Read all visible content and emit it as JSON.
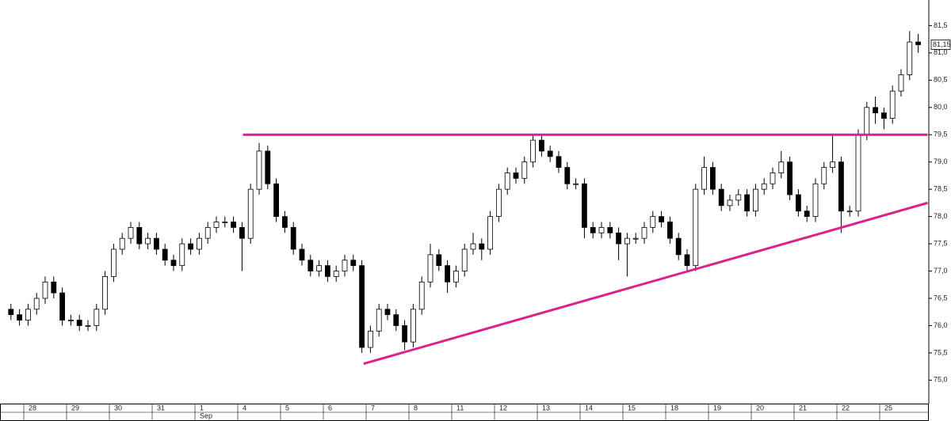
{
  "chart_data": {
    "type": "candlestick",
    "categories": [
      null,
      null,
      "28",
      null,
      null,
      null,
      null,
      "29",
      null,
      null,
      null,
      null,
      "30",
      null,
      null,
      null,
      null,
      "31",
      null,
      null,
      null,
      null,
      "1",
      null,
      null,
      null,
      null,
      "4",
      null,
      null,
      null,
      null,
      "5",
      null,
      null,
      null,
      null,
      "6",
      null,
      null,
      null,
      null,
      "7",
      null,
      null,
      null,
      null,
      "8",
      null,
      null,
      null,
      null,
      "11",
      null,
      null,
      null,
      null,
      "12",
      null,
      null,
      null,
      null,
      "13",
      null,
      null,
      null,
      null,
      "14",
      null,
      null,
      null,
      null,
      "15",
      null,
      null,
      null,
      null,
      "18",
      null,
      null,
      null,
      null,
      "19",
      null,
      null,
      null,
      null,
      "20",
      null,
      null,
      null,
      null,
      "21",
      null,
      null,
      null,
      null,
      "22",
      null,
      null,
      null,
      null,
      "25",
      null,
      null,
      null,
      null
    ],
    "month_labels": [
      {
        "label": "Sep",
        "at": 22
      }
    ],
    "open": [
      76.3,
      76.2,
      76.1,
      76.3,
      76.5,
      76.8,
      76.6,
      76.1,
      76.1,
      76.0,
      76.0,
      76.3,
      76.9,
      77.4,
      77.6,
      77.8,
      77.5,
      77.6,
      77.4,
      77.2,
      77.1,
      77.5,
      77.4,
      77.6,
      77.8,
      77.9,
      77.9,
      77.8,
      77.6,
      78.5,
      79.2,
      78.6,
      78.0,
      77.8,
      77.4,
      77.2,
      77.0,
      77.1,
      76.9,
      77.0,
      77.2,
      77.1,
      75.6,
      75.9,
      76.3,
      76.2,
      76.0,
      75.7,
      76.3,
      76.8,
      77.3,
      77.1,
      76.8,
      77.0,
      77.4,
      77.5,
      77.4,
      78.0,
      78.5,
      78.8,
      78.7,
      79.0,
      79.4,
      79.2,
      79.1,
      78.9,
      78.6,
      78.6,
      77.8,
      77.7,
      77.8,
      77.7,
      77.5,
      77.6,
      77.6,
      77.8,
      78.0,
      77.9,
      77.6,
      77.3,
      77.1,
      78.5,
      78.9,
      78.5,
      78.2,
      78.3,
      78.4,
      78.1,
      78.5,
      78.6,
      78.8,
      79.0,
      78.4,
      78.1,
      78.0,
      78.6,
      78.9,
      79.0,
      78.1,
      78.1,
      79.5,
      80.0,
      79.9,
      79.8,
      80.3,
      80.6,
      81.2
    ],
    "high": [
      76.4,
      76.3,
      76.4,
      76.6,
      76.9,
      76.9,
      76.7,
      76.2,
      76.2,
      76.1,
      76.4,
      77.0,
      77.5,
      77.7,
      77.9,
      77.9,
      77.7,
      77.7,
      77.5,
      77.3,
      77.6,
      77.6,
      77.7,
      77.9,
      78.0,
      78.0,
      78.0,
      77.9,
      78.6,
      79.35,
      79.3,
      78.7,
      78.1,
      77.9,
      77.5,
      77.3,
      77.2,
      77.2,
      77.1,
      77.3,
      77.3,
      77.2,
      76.0,
      76.4,
      76.4,
      76.3,
      76.1,
      76.4,
      76.9,
      77.5,
      77.4,
      77.2,
      77.1,
      77.5,
      77.7,
      77.6,
      78.1,
      78.6,
      78.9,
      78.9,
      79.1,
      79.5,
      79.5,
      79.3,
      79.2,
      79.0,
      78.7,
      78.7,
      77.9,
      77.9,
      77.9,
      77.8,
      77.7,
      77.7,
      77.9,
      78.1,
      78.1,
      78.0,
      77.7,
      77.4,
      78.6,
      79.1,
      79.0,
      78.6,
      78.4,
      78.5,
      78.5,
      78.6,
      78.7,
      78.9,
      79.2,
      79.1,
      78.5,
      78.2,
      78.7,
      79.0,
      79.5,
      79.1,
      78.2,
      79.6,
      80.1,
      80.2,
      80.0,
      80.4,
      80.7,
      81.4,
      81.35
    ],
    "low": [
      76.1,
      76.0,
      76.0,
      76.2,
      76.4,
      76.5,
      76.0,
      76.0,
      75.9,
      75.9,
      75.9,
      76.2,
      76.8,
      77.3,
      77.5,
      77.4,
      77.4,
      77.3,
      77.1,
      77.0,
      77.0,
      77.3,
      77.3,
      77.5,
      77.7,
      77.8,
      77.7,
      77.0,
      77.5,
      78.4,
      78.5,
      77.9,
      77.7,
      77.3,
      77.1,
      76.9,
      76.9,
      76.8,
      76.8,
      76.9,
      77.0,
      75.5,
      75.5,
      75.8,
      76.1,
      75.9,
      75.55,
      75.6,
      76.2,
      76.7,
      77.0,
      76.6,
      76.7,
      76.9,
      77.3,
      77.2,
      77.3,
      77.9,
      78.4,
      78.6,
      78.6,
      78.9,
      79.1,
      79.0,
      78.8,
      78.5,
      78.5,
      77.6,
      77.6,
      77.6,
      77.6,
      77.2,
      76.9,
      77.5,
      77.5,
      77.7,
      77.8,
      77.5,
      77.2,
      77.0,
      77.0,
      78.4,
      78.4,
      78.1,
      78.1,
      78.2,
      78.0,
      78.0,
      78.4,
      78.5,
      78.7,
      78.3,
      78.0,
      77.9,
      77.9,
      78.5,
      78.8,
      77.7,
      78.0,
      78.0,
      79.4,
      79.7,
      79.6,
      79.7,
      80.2,
      80.5,
      81.0
    ],
    "close": [
      76.2,
      76.1,
      76.3,
      76.5,
      76.8,
      76.6,
      76.1,
      76.1,
      76.0,
      76.0,
      76.3,
      76.9,
      77.4,
      77.6,
      77.8,
      77.5,
      77.6,
      77.4,
      77.2,
      77.1,
      77.5,
      77.4,
      77.6,
      77.8,
      77.9,
      77.9,
      77.8,
      77.6,
      78.5,
      79.2,
      78.6,
      78.0,
      77.8,
      77.4,
      77.2,
      77.0,
      77.1,
      76.9,
      77.0,
      77.2,
      77.1,
      75.6,
      75.9,
      76.3,
      76.2,
      76.0,
      75.7,
      76.3,
      76.8,
      77.3,
      77.1,
      76.8,
      77.0,
      77.4,
      77.5,
      77.4,
      78.0,
      78.5,
      78.8,
      78.7,
      79.0,
      79.4,
      79.2,
      79.1,
      78.9,
      78.6,
      78.6,
      77.8,
      77.7,
      77.8,
      77.7,
      77.5,
      77.6,
      77.6,
      77.8,
      78.0,
      77.9,
      77.6,
      77.3,
      77.1,
      78.5,
      78.9,
      78.5,
      78.2,
      78.3,
      78.4,
      78.1,
      78.5,
      78.6,
      78.8,
      79.0,
      78.4,
      78.1,
      78.0,
      78.6,
      78.9,
      79.0,
      78.1,
      78.1,
      79.5,
      80.0,
      79.9,
      79.8,
      80.3,
      80.6,
      81.2,
      81.15
    ],
    "last_label": "81,15",
    "up_color": "#ffffff",
    "down_color": "#000000",
    "edge_color": "#000000",
    "lines": [
      {
        "color": "#e0208a",
        "points": [
          [
            27.1,
            79.5
          ],
          [
            107.1,
            79.5
          ]
        ]
      },
      {
        "color": "#e0208a",
        "points": [
          [
            41.2,
            75.3
          ],
          [
            107.1,
            78.25
          ]
        ]
      }
    ],
    "ylim": [
      74.57,
      81.97
    ],
    "yticks": [
      {
        "value": 75.0,
        "label": "75,0"
      },
      {
        "value": 75.5,
        "label": "75,5"
      },
      {
        "value": 76.0,
        "label": "76,0"
      },
      {
        "value": 76.5,
        "label": "76,5"
      },
      {
        "value": 77.0,
        "label": "77,0"
      },
      {
        "value": 77.5,
        "label": "77,5"
      },
      {
        "value": 78.0,
        "label": "78,0"
      },
      {
        "value": 78.5,
        "label": "78,5"
      },
      {
        "value": 79.0,
        "label": "79,0"
      },
      {
        "value": 79.5,
        "label": "79,5"
      },
      {
        "value": 80.0,
        "label": "80,0"
      },
      {
        "value": 80.5,
        "label": "80,5"
      },
      {
        "value": 81.0,
        "label": "81,0"
      },
      {
        "value": 81.5,
        "label": "81,5"
      }
    ]
  }
}
